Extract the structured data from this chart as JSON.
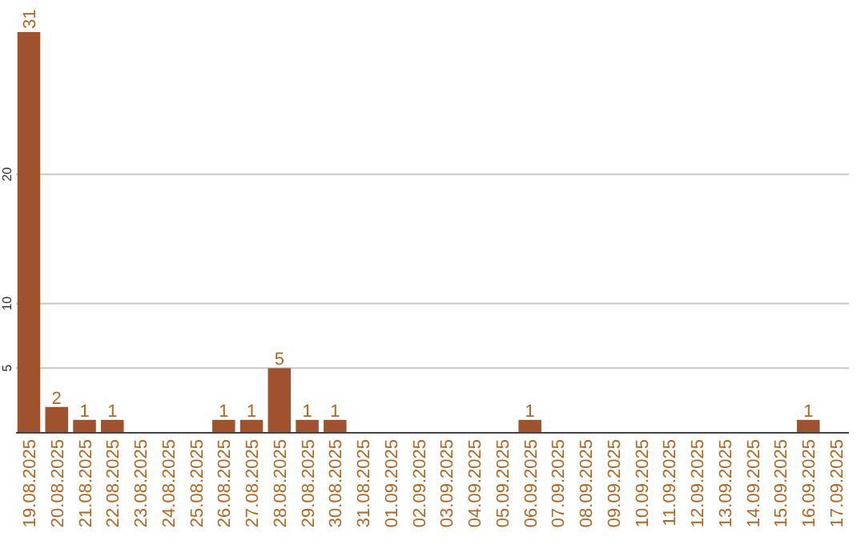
{
  "chart_data": {
    "type": "bar",
    "categories": [
      "19.08.2025",
      "20.08.2025",
      "21.08.2025",
      "22.08.2025",
      "23.08.2025",
      "24.08.2025",
      "25.08.2025",
      "26.08.2025",
      "27.08.2025",
      "28.08.2025",
      "29.08.2025",
      "30.08.2025",
      "31.08.2025",
      "01.09.2025",
      "02.09.2025",
      "03.09.2025",
      "04.09.2025",
      "05.09.2025",
      "06.09.2025",
      "07.09.2025",
      "08.09.2025",
      "09.09.2025",
      "10.09.2025",
      "11.09.2025",
      "12.09.2025",
      "13.09.2025",
      "14.09.2025",
      "15.09.2025",
      "16.09.2025",
      "17.09.2025"
    ],
    "values": [
      31,
      2,
      1,
      1,
      0,
      0,
      0,
      1,
      1,
      5,
      1,
      1,
      0,
      0,
      0,
      0,
      0,
      0,
      1,
      0,
      0,
      0,
      0,
      0,
      0,
      0,
      0,
      0,
      1,
      0
    ],
    "value_labels": [
      "31",
      "2",
      "1",
      "1",
      null,
      null,
      null,
      "1",
      "1",
      "5",
      "1",
      "1",
      null,
      null,
      null,
      null,
      null,
      null,
      "1",
      null,
      null,
      null,
      null,
      null,
      null,
      null,
      null,
      null,
      "1",
      null
    ],
    "color": "#a0522d",
    "ylim": [
      0,
      31
    ],
    "yticks": [
      5,
      10,
      20
    ],
    "grid": "y"
  }
}
